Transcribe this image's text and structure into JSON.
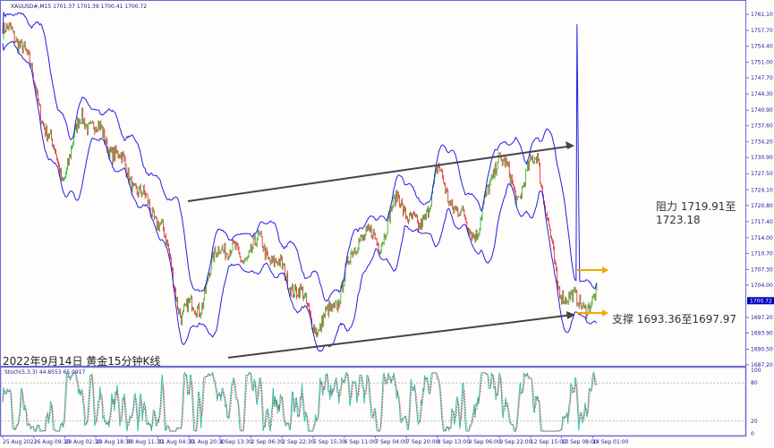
{
  "header": {
    "symbol": "XAUUSD#,M15",
    "ohlc": "1701.37 1701.39 1700.41 1700.72"
  },
  "caption": "2022年9月14日 黄金15分钟K线",
  "annotations": {
    "resistance": "阻力 1719.91至1723.18",
    "support": "支撑 1693.36至1697.97"
  },
  "colors": {
    "envelope": "#2020e0",
    "up": "#20b020",
    "down": "#e02020",
    "trend": "#444444",
    "arrow": "#f0a800",
    "axis": "#6a6ad8",
    "current": "#0000c0"
  },
  "chart_data": {
    "type": "candlestick",
    "title": "",
    "y_ticks": [
      "1761.10",
      "1757.70",
      "1754.40",
      "1751.00",
      "1747.70",
      "1744.30",
      "1740.90",
      "1737.60",
      "1734.20",
      "1730.90",
      "1727.50",
      "1724.10",
      "1720.80",
      "1717.40",
      "1714.00",
      "1710.70",
      "1707.30",
      "1704.00",
      "1697.20",
      "1693.90",
      "1690.50",
      "1687.20"
    ],
    "ylim": [
      1687.2,
      1761.1
    ],
    "current_price": "1700.72",
    "x_ticks": [
      "25 Aug 2022",
      "26 Aug 09:30",
      "29 Aug 02:30",
      "29 Aug 18:30",
      "30 Aug 11:30",
      "31 Aug 04:30",
      "31 Aug 20:30",
      "1 Sep 13:30",
      "2 Sep 06:30",
      "2 Sep 22:30",
      "5 Sep 15:30",
      "6 Sep 11:00",
      "7 Sep 04:00",
      "7 Sep 20:00",
      "8 Sep 13:00",
      "9 Sep 06:00",
      "9 Sep 22:00",
      "12 Sep 15:00",
      "13 Sep 08:00",
      "14 Sep 01:00"
    ],
    "approx_close_path": [
      1757.5,
      1755.6,
      1739.6,
      1726.4,
      1739.6,
      1735.8,
      1730,
      1722.7,
      1717,
      1698,
      1700,
      1713.2,
      1709.5,
      1713,
      1707.5,
      1702,
      1694.4,
      1702,
      1715,
      1713,
      1722.7,
      1715,
      1728,
      1718.8,
      1715,
      1732,
      1722.7,
      1732,
      1704,
      1700,
      1700.72
    ],
    "indicator": {
      "name": "Stoch(5,3,3)",
      "main": "44.8553",
      "signal": "65.0917",
      "levels": [
        20,
        80
      ],
      "ticks": [
        "100",
        "80",
        "20",
        "0"
      ]
    },
    "trendlines": [
      {
        "from": "31 Aug 20:30",
        "to": "13 Sep 08:00",
        "role": "resistance channel"
      },
      {
        "from": "1 Sep 13:30",
        "to": "13 Sep 08:00",
        "role": "support channel"
      }
    ]
  }
}
